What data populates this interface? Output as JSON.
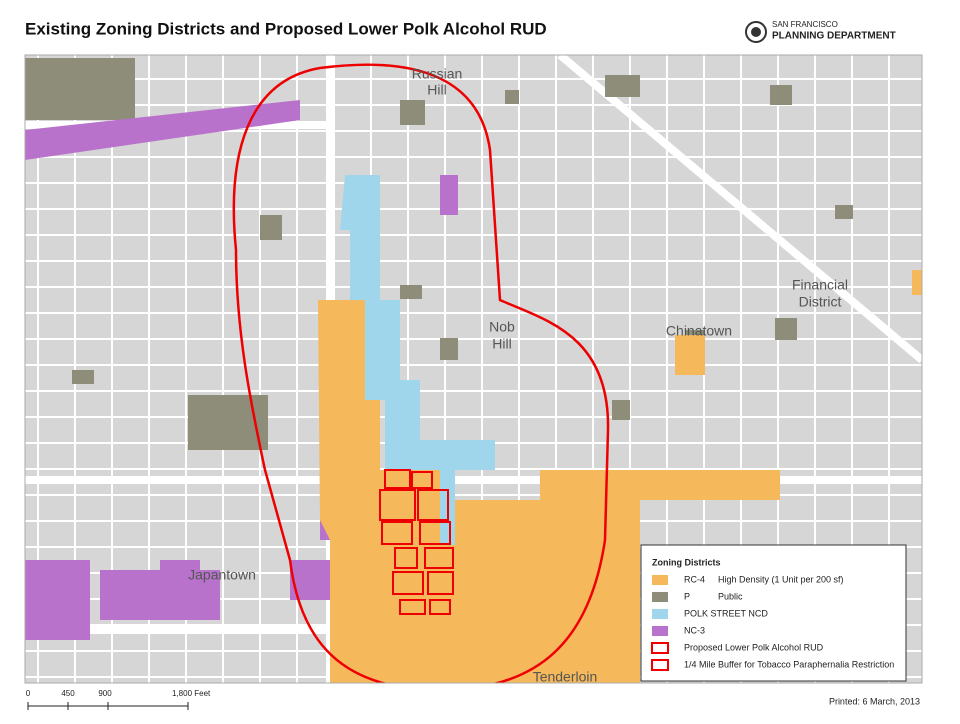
{
  "header": {
    "title": "Existing Zoning Districts and Proposed Lower Polk Alcohol RUD",
    "logo_top": "SAN FRANCISCO",
    "logo_bottom": "PLANNING DEPARTMENT"
  },
  "map": {
    "labels": [
      [
        "Russian",
        "Hill"
      ],
      [
        "Nob",
        "Hill"
      ],
      [
        "Chinatown"
      ],
      [
        "Financial",
        "District"
      ],
      [
        "Japantown"
      ],
      [
        "Tenderloin"
      ]
    ]
  },
  "legend": {
    "title": "Zoning Districts",
    "items": [
      {
        "code": "RC-4",
        "desc": "High Density (1 Unit per 200 sf)"
      },
      {
        "code": "P",
        "desc": "Public"
      },
      {
        "code": "POLK STREET NCD"
      },
      {
        "code": "NC-3"
      },
      {
        "code": "Proposed Lower Polk Alcohol RUD"
      },
      {
        "code": "1/4 Mile Buffer for Tobacco Paraphernalia Restriction"
      }
    ]
  },
  "footer": {
    "scale": [
      "0",
      "450",
      "900",
      "1,800 Feet"
    ],
    "printed": "Printed:  6 March, 2013"
  }
}
